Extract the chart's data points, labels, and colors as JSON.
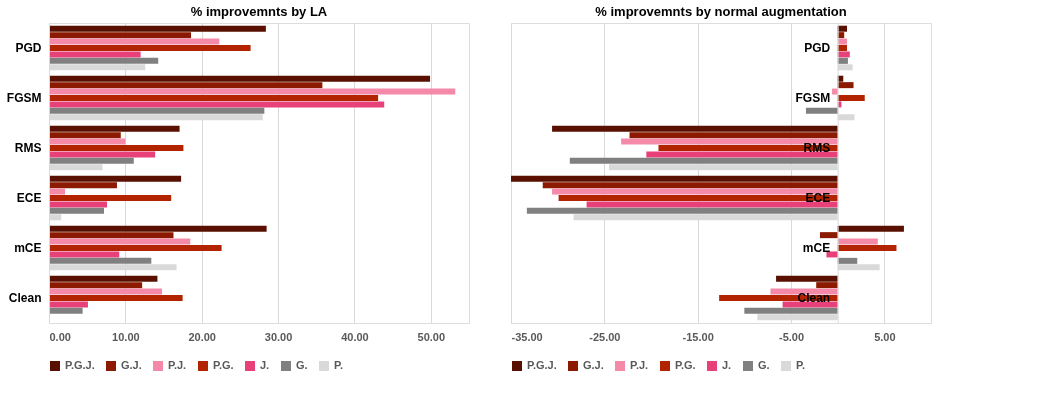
{
  "chart_data": [
    {
      "type": "bar",
      "orientation": "horizontal",
      "title": "% improvemnts by LA",
      "categories": [
        "PGD",
        "FGSM",
        "RMS",
        "ECE",
        "mCE",
        "Clean"
      ],
      "series": [
        {
          "name": "P.G.J.",
          "color": "#5a1000",
          "values": [
            28.4,
            49.9,
            17.1,
            17.3,
            28.5,
            14.2
          ]
        },
        {
          "name": "G.J.",
          "color": "#8b1a00",
          "values": [
            18.6,
            35.8,
            9.4,
            8.9,
            16.3,
            12.2
          ]
        },
        {
          "name": "P.J.",
          "color": "#f48aa8",
          "values": [
            22.3,
            53.2,
            10.0,
            2.1,
            18.5,
            14.8
          ]
        },
        {
          "name": "P.G.",
          "color": "#b22400",
          "values": [
            26.4,
            43.1,
            17.6,
            16.0,
            22.6,
            17.5
          ]
        },
        {
          "name": "J.",
          "color": "#e8417a",
          "values": [
            12.0,
            43.9,
            13.9,
            7.6,
            9.2,
            5.1
          ]
        },
        {
          "name": "G.",
          "color": "#808080",
          "values": [
            14.3,
            28.2,
            11.1,
            7.2,
            13.4,
            4.4
          ]
        },
        {
          "name": "P.",
          "color": "#d9d9d9",
          "values": [
            12.6,
            28.0,
            7.0,
            1.6,
            16.7,
            null
          ]
        }
      ],
      "xlim": [
        0,
        55
      ],
      "xticks": [
        {
          "value": 0,
          "label": "0.00"
        },
        {
          "value": 10,
          "label": "10.00"
        },
        {
          "value": 20,
          "label": "20.00"
        },
        {
          "value": 30,
          "label": "30.00"
        },
        {
          "value": 40,
          "label": "40.00"
        },
        {
          "value": 50,
          "label": "50.00"
        }
      ],
      "grid": "x",
      "legend": "bottom"
    },
    {
      "type": "bar",
      "orientation": "horizontal",
      "title": "% improvemnts by normal augmentation",
      "categories": [
        "PGD",
        "FGSM",
        "RMS",
        "ECE",
        "mCE",
        "Clean"
      ],
      "series": [
        {
          "name": "P.G.J.",
          "color": "#5a1000",
          "values": [
            1.0,
            0.6,
            -30.6,
            -35.0,
            7.1,
            -6.6
          ]
        },
        {
          "name": "G.J.",
          "color": "#8b1a00",
          "values": [
            0.7,
            1.7,
            -22.3,
            -31.6,
            -1.9,
            -2.3
          ]
        },
        {
          "name": "P.J.",
          "color": "#f48aa8",
          "values": [
            1.0,
            -0.6,
            -23.2,
            -30.6,
            4.3,
            -7.2
          ]
        },
        {
          "name": "P.G.",
          "color": "#b22400",
          "values": [
            1.0,
            2.9,
            -19.2,
            -29.9,
            6.3,
            -12.7
          ]
        },
        {
          "name": "J.",
          "color": "#e8417a",
          "values": [
            1.3,
            0.4,
            -20.5,
            -26.9,
            -1.2,
            -5.9
          ]
        },
        {
          "name": "G.",
          "color": "#808080",
          "values": [
            1.1,
            -3.4,
            -28.7,
            -33.3,
            2.1,
            -10.0
          ]
        },
        {
          "name": "P.",
          "color": "#d9d9d9",
          "values": [
            1.6,
            1.8,
            -24.5,
            -28.3,
            4.5,
            -8.6
          ]
        }
      ],
      "xlim": [
        -35,
        10
      ],
      "xticks": [
        {
          "value": -35,
          "label": "-35.00"
        },
        {
          "value": -25,
          "label": "-25.00"
        },
        {
          "value": -15,
          "label": "-15.00"
        },
        {
          "value": -5,
          "label": "-5.00"
        },
        {
          "value": 5,
          "label": "5.00"
        }
      ],
      "grid": "x",
      "legend": "bottom"
    }
  ]
}
